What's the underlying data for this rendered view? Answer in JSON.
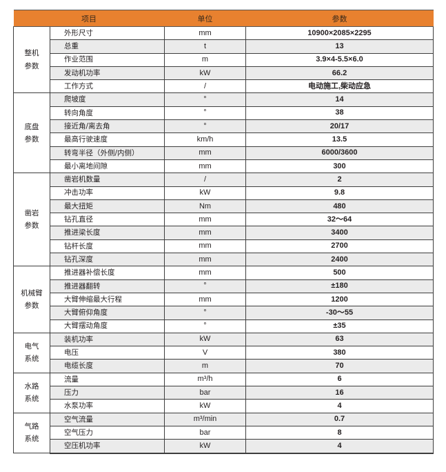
{
  "header": {
    "item": "项目",
    "unit": "单位",
    "value": "参数"
  },
  "colors": {
    "header_bg": "#e8812f",
    "row_stripe": "#ebebeb"
  },
  "groups": [
    {
      "label": "整机\n参数",
      "rows": [
        {
          "item": "外形尺寸",
          "unit": "mm",
          "value": "10900×2085×2295"
        },
        {
          "item": "总重",
          "unit": "t",
          "value": "13"
        },
        {
          "item": "作业范围",
          "unit": "m",
          "value": "3.9×4-5.5×6.0"
        },
        {
          "item": "发动机功率",
          "unit": "kW",
          "value": "66.2"
        },
        {
          "item": "工作方式",
          "unit": "/",
          "value": "电动施工,柴动应急"
        }
      ]
    },
    {
      "label": "底盘\n参数",
      "rows": [
        {
          "item": "爬坡度",
          "unit": "°",
          "value": "14"
        },
        {
          "item": "转向角度",
          "unit": "°",
          "value": "38"
        },
        {
          "item": "接近角/离去角",
          "unit": "°",
          "value": "20/17"
        },
        {
          "item": "最高行驶速度",
          "unit": "km/h",
          "value": "13.5"
        },
        {
          "item": "转弯半径（外侧/内侧）",
          "unit": "mm",
          "value": "6000/3600"
        },
        {
          "item": "最小离地间隙",
          "unit": "mm",
          "value": "300"
        }
      ]
    },
    {
      "label": "凿岩\n参数",
      "rows": [
        {
          "item": "凿岩机数量",
          "unit": "/",
          "value": "2"
        },
        {
          "item": "冲击功率",
          "unit": "kW",
          "value": "9.8"
        },
        {
          "item": "最大扭矩",
          "unit": "Nm",
          "value": "480"
        },
        {
          "item": "钻孔直径",
          "unit": "mm",
          "value": "32～64"
        },
        {
          "item": "推进梁长度",
          "unit": "mm",
          "value": "3400"
        },
        {
          "item": "钻杆长度",
          "unit": "mm",
          "value": "2700"
        },
        {
          "item": "钻孔深度",
          "unit": "mm",
          "value": "2400"
        }
      ]
    },
    {
      "label": "机械臂\n参数",
      "rows": [
        {
          "item": "推进器补偿长度",
          "unit": "mm",
          "value": "500"
        },
        {
          "item": "推进器翻转",
          "unit": "°",
          "value": "±180"
        },
        {
          "item": "大臂伸缩最大行程",
          "unit": "mm",
          "value": "1200"
        },
        {
          "item": "大臂俯仰角度",
          "unit": "°",
          "value": "-30～55"
        },
        {
          "item": "大臂摆动角度",
          "unit": "°",
          "value": "±35"
        }
      ]
    },
    {
      "label": "电气\n系统",
      "rows": [
        {
          "item": "装机功率",
          "unit": "kW",
          "value": "63"
        },
        {
          "item": "电压",
          "unit": "V",
          "value": "380"
        },
        {
          "item": "电缆长度",
          "unit": "m",
          "value": "70"
        }
      ]
    },
    {
      "label": "水路\n系统",
      "rows": [
        {
          "item": "流量",
          "unit": "m³/h",
          "value": "6"
        },
        {
          "item": "压力",
          "unit": "bar",
          "value": "16"
        },
        {
          "item": "水泵功率",
          "unit": "kW",
          "value": "4"
        }
      ]
    },
    {
      "label": "气路\n系统",
      "rows": [
        {
          "item": "空气流量",
          "unit": "m³/min",
          "value": "0.7"
        },
        {
          "item": "空气压力",
          "unit": "bar",
          "value": "8"
        },
        {
          "item": "空压机功率",
          "unit": "kW",
          "value": "4"
        }
      ]
    }
  ]
}
